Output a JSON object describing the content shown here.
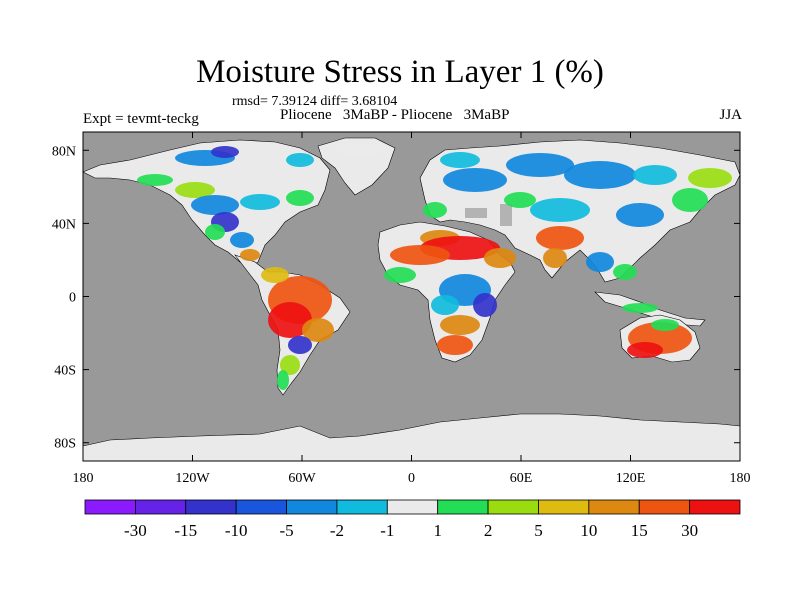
{
  "title": "Moisture Stress in Layer 1 (%)",
  "stats_text": "rmsd= 7.39124 diff= 3.68104",
  "left_label": "Expt = tevmt-teckg",
  "center_label": "Pliocene   3MaBP - Pliocene   3MaBP",
  "right_label": "JJA",
  "colors": {
    "ocean": "#999999",
    "land_neutral": "#eaeaea",
    "missing": "#b3b3b3"
  },
  "map": {
    "projection": "cylindrical-equidistant",
    "lon_range": [
      -180,
      180
    ],
    "lat_range": [
      -90,
      90
    ],
    "x_ticks": [
      {
        "lon": -180,
        "label": "180"
      },
      {
        "lon": -120,
        "label": "120W"
      },
      {
        "lon": -60,
        "label": "60W"
      },
      {
        "lon": 0,
        "label": "0"
      },
      {
        "lon": 60,
        "label": "60E"
      },
      {
        "lon": 120,
        "label": "120E"
      },
      {
        "lon": 180,
        "label": "180"
      }
    ],
    "y_ticks": [
      {
        "lat": 80,
        "label": "80N"
      },
      {
        "lat": 40,
        "label": "40N"
      },
      {
        "lat": 0,
        "label": "0"
      },
      {
        "lat": -40,
        "label": "40S"
      },
      {
        "lat": -80,
        "label": "80S"
      }
    ]
  },
  "colorbar": {
    "colors": [
      "#8c1aff",
      "#6622e6",
      "#3333cc",
      "#1a55dd",
      "#1188dd",
      "#11bbdd",
      "#eaeaea",
      "#22dd55",
      "#99dd11",
      "#ddbb11",
      "#dd8811",
      "#ee5511",
      "#ee1111"
    ],
    "labels": [
      "-30",
      "-15",
      "-10",
      "-5",
      "-2",
      "-1",
      "1",
      "2",
      "5",
      "10",
      "15",
      "30"
    ]
  }
}
